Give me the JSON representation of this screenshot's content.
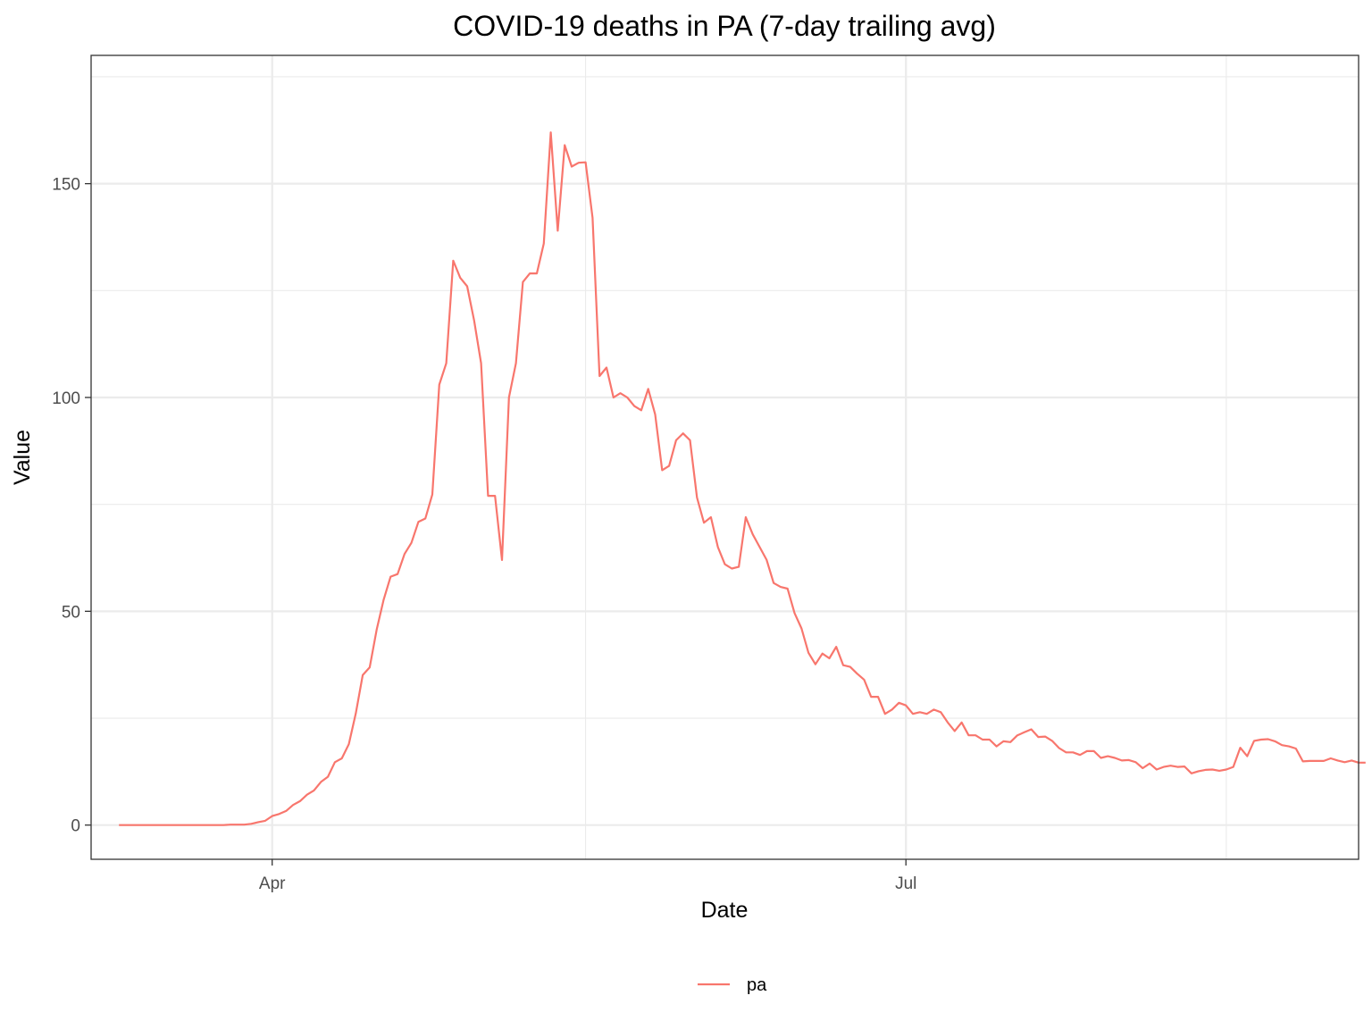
{
  "chart_data": {
    "type": "line",
    "title": "COVID-19 deaths in PA (7-day trailing avg)",
    "xlabel": "Date",
    "ylabel": "Value",
    "x_tick_labels": [
      {
        "date": "2020-04-01",
        "label": "Apr"
      },
      {
        "date": "2020-07-01",
        "label": "Jul"
      }
    ],
    "x_minor_dates": [
      "2020-05-16",
      "2020-08-16"
    ],
    "xlim": [
      "2020-03-06",
      "2020-09-04"
    ],
    "y_ticks": [
      0,
      50,
      100,
      150
    ],
    "y_minor_ticks": [
      25,
      75,
      125,
      175
    ],
    "ylim": [
      -8,
      180
    ],
    "grid": true,
    "legend_position": "bottom",
    "series": [
      {
        "name": "pa",
        "color": "#F8766D",
        "start_date": "2020-03-10",
        "values": [
          0,
          0,
          0,
          0,
          0,
          0,
          0,
          0,
          0,
          0,
          0,
          0,
          0,
          0,
          0,
          0,
          0.1,
          0.1,
          0.1,
          0.3,
          0.7,
          1.0,
          2.1,
          2.6,
          3.3,
          4.7,
          5.6,
          7.1,
          8.1,
          10.1,
          11.3,
          14.7,
          15.6,
          18.9,
          26.1,
          35.1,
          36.9,
          45.7,
          52.7,
          58.1,
          58.7,
          63.4,
          66.0,
          70.9,
          71.7,
          77.3,
          103.0,
          108.0,
          132.0,
          128.0,
          126.0,
          118.0,
          108.0,
          77.0,
          77.0,
          62.0,
          100.0,
          108.0,
          127.0,
          129.0,
          129.0,
          136.0,
          162.0,
          139.0,
          159.0,
          154.0,
          154.9,
          155.0,
          142.0,
          105.0,
          107.0,
          100.0,
          101.0,
          100.0,
          98.0,
          97.0,
          102.0,
          96.0,
          83.0,
          84.0,
          90.0,
          91.6,
          90.0,
          76.6,
          70.7,
          72.0,
          65.0,
          61.0,
          60.0,
          60.4,
          72.0,
          68.0,
          65.0,
          62.0,
          56.6,
          55.7,
          55.3,
          49.6,
          46.0,
          40.3,
          37.6,
          40.1,
          39.0,
          41.7,
          37.4,
          37.0,
          35.4,
          34.0,
          30.0,
          30.0,
          26.0,
          27.0,
          28.6,
          28.0,
          26.0,
          26.4,
          26.0,
          27.0,
          26.4,
          24.0,
          22.0,
          24.0,
          21.0,
          21.0,
          20.0,
          20.0,
          18.4,
          19.6,
          19.4,
          21.0,
          21.7,
          22.4,
          20.6,
          20.7,
          19.7,
          18.0,
          17.0,
          17.0,
          16.4,
          17.3,
          17.3,
          15.7,
          16.1,
          15.7,
          15.1,
          15.2,
          14.7,
          13.3,
          14.4,
          13.0,
          13.6,
          13.9,
          13.6,
          13.7,
          12.1,
          12.6,
          12.9,
          13.0,
          12.7,
          13.0,
          13.6,
          18.1,
          16.1,
          19.7,
          20.0,
          20.1,
          19.6,
          18.7,
          18.4,
          17.9,
          14.9,
          15.0,
          15.0,
          15.0,
          15.6,
          15.1,
          14.7,
          15.1,
          14.6,
          14.6
        ]
      }
    ]
  }
}
